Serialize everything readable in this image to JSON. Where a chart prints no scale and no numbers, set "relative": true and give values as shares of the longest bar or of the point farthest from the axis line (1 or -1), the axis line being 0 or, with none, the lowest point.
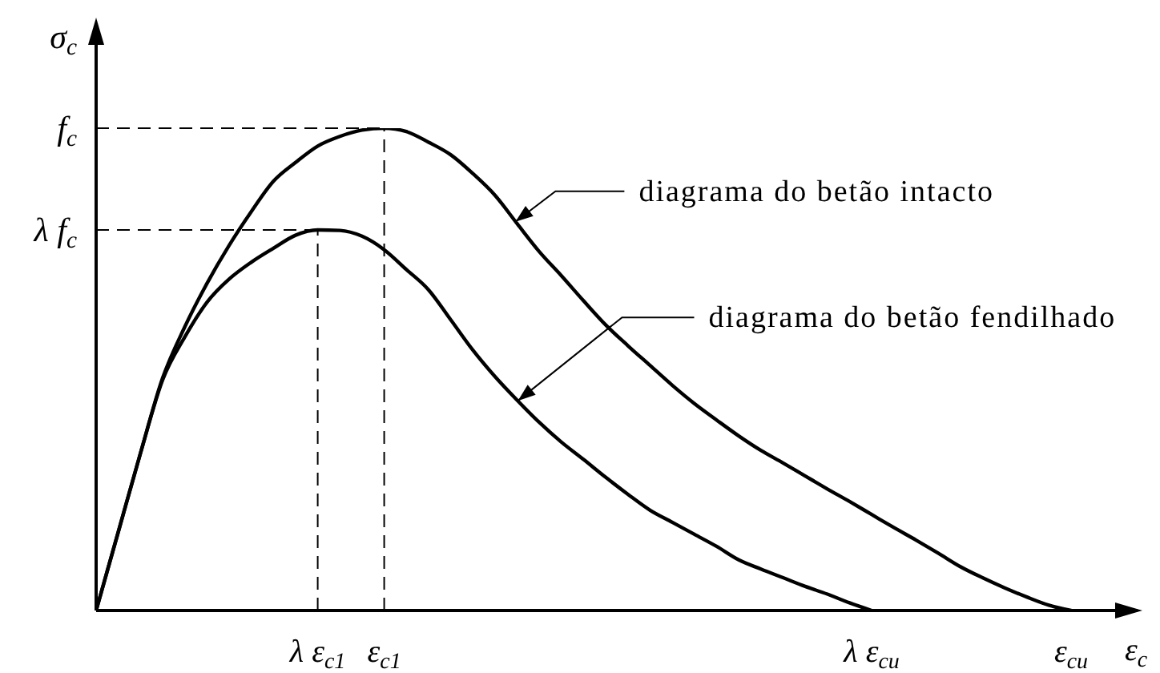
{
  "chart_data": {
    "type": "line",
    "relative": true,
    "xlabel": "ε$_{c}$",
    "ylabel": "σ$_{c}$",
    "categories": [
      null,
      null,
      null,
      null,
      null,
      null,
      null,
      null,
      null,
      null,
      "λ ε$_{c1}$",
      null,
      null,
      "ε$_{c1}$",
      null,
      null,
      null,
      null,
      null,
      null,
      null,
      null,
      null,
      null,
      null,
      null,
      null,
      null,
      null,
      null,
      null,
      null,
      null,
      null,
      null,
      "λ ε$_{cu}$",
      null,
      null,
      null,
      null,
      null,
      null,
      null,
      null,
      "ε$_{cu}$",
      null,
      null,
      null
    ],
    "series": [
      {
        "color": "#000000",
        "values": [
          0,
          0.163,
          0.326,
          0.482,
          0.588,
          0.678,
          0.757,
          0.827,
          0.89,
          0.929,
          0.963,
          0.983,
          0.996,
          1,
          0.993,
          0.971,
          0.945,
          0.906,
          0.861,
          0.802,
          0.744,
          0.694,
          0.642,
          0.592,
          0.549,
          0.508,
          0.467,
          0.429,
          0.395,
          0.362,
          0.332,
          0.306,
          0.279,
          0.252,
          0.226,
          0.199,
          0.172,
          0.146,
          0.119,
          0.091,
          0.068,
          0.047,
          0.028,
          0.011,
          0,
          null,
          null,
          null
        ]
      },
      {
        "color": "#000000",
        "values": [
          0,
          0.163,
          0.326,
          0.478,
          0.567,
          0.639,
          0.687,
          0.722,
          0.751,
          0.778,
          0.789,
          0.788,
          0.776,
          0.748,
          0.707,
          0.665,
          0.603,
          0.54,
          0.485,
          0.436,
          0.39,
          0.349,
          0.313,
          0.276,
          0.241,
          0.208,
          0.183,
          0.158,
          0.133,
          0.105,
          0.086,
          0.068,
          0.05,
          0.034,
          0.016,
          0,
          null,
          null,
          null,
          null,
          null,
          null,
          null,
          null,
          null,
          null,
          null,
          null
        ]
      }
    ],
    "ref_lines": [
      {
        "axis": "y",
        "value": 1,
        "label": "f$_{c}$"
      },
      {
        "axis": "y",
        "value": 0.789,
        "label": "λ f$_{c}$"
      },
      {
        "axis": "x",
        "value": "ε$_{c1}$"
      },
      {
        "axis": "x",
        "value": "λ ε$_{c1}$"
      }
    ],
    "annotations": [
      "diagrama do betão intacto",
      "diagrama do betão fendilhado"
    ]
  }
}
